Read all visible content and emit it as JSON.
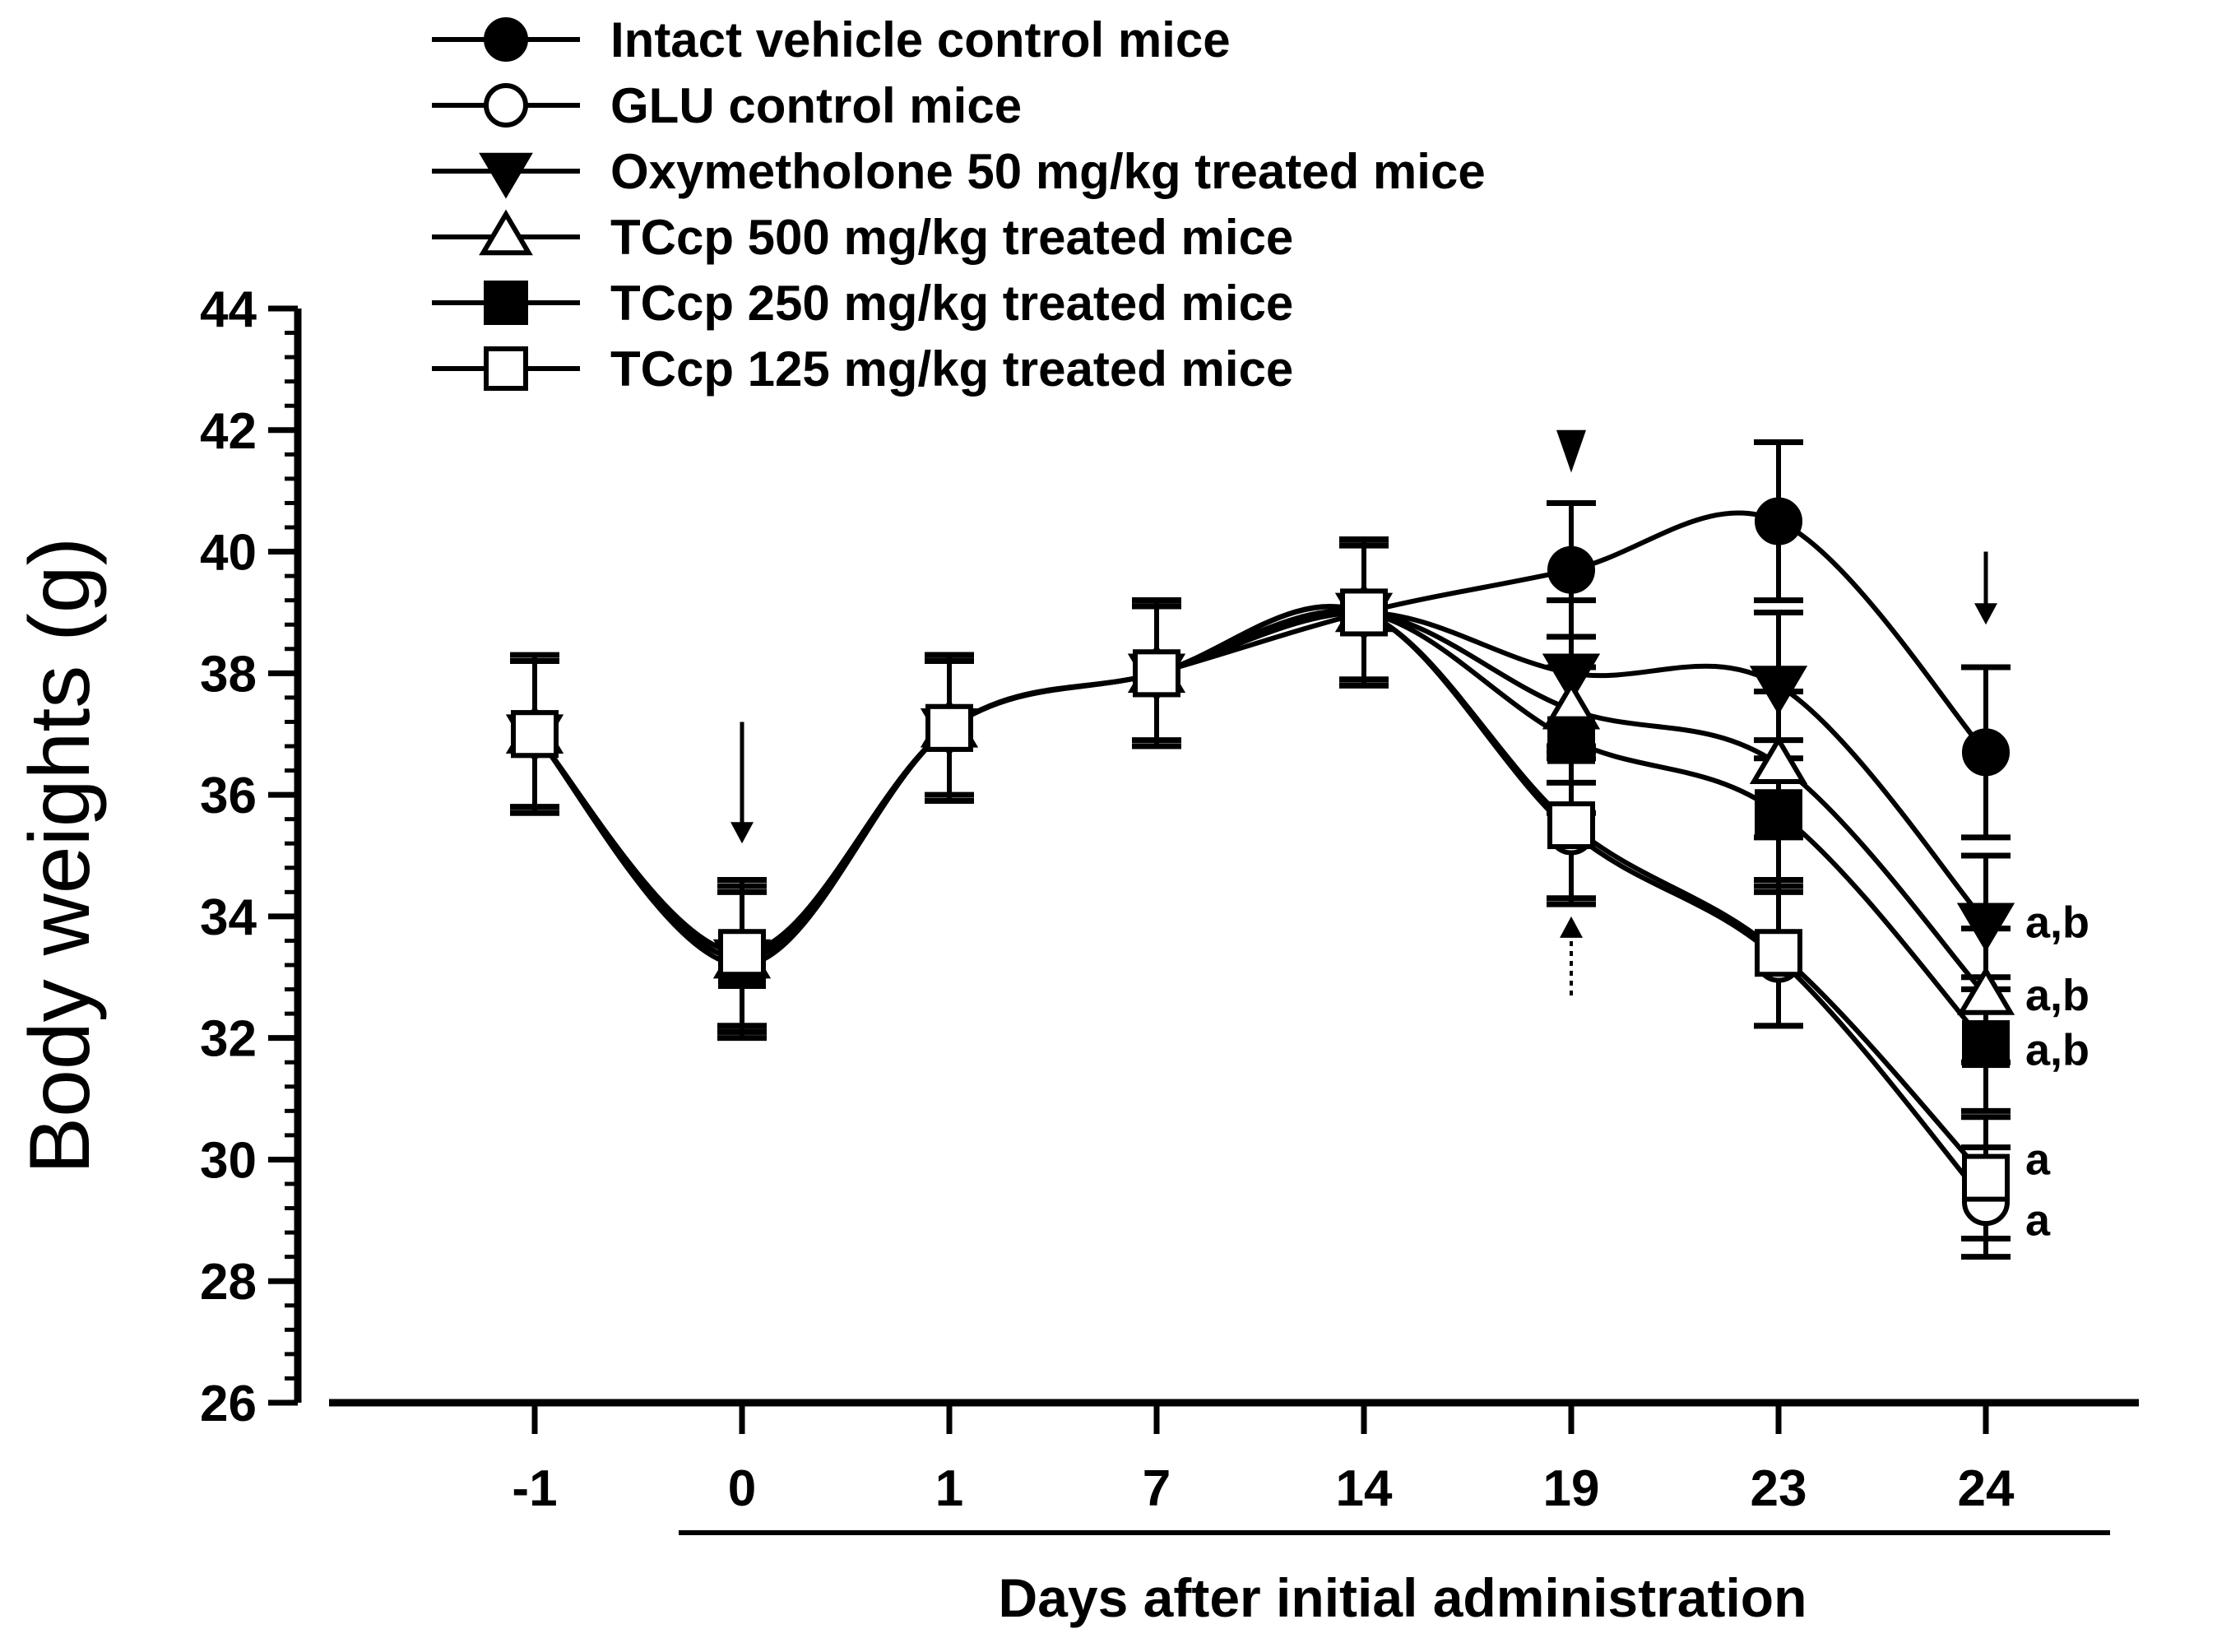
{
  "chart_data": {
    "type": "line",
    "title": "",
    "xlabel": "Days after initial administration",
    "ylabel": "Body weights (g)",
    "categories": [
      "-1",
      "0",
      "1",
      "7",
      "14",
      "19",
      "23",
      "24"
    ],
    "ylim": [
      26,
      44
    ],
    "yticks": [
      "26",
      "28",
      "30",
      "32",
      "34",
      "36",
      "38",
      "40",
      "42",
      "44"
    ],
    "grid": false,
    "legend_position": "top-left",
    "series": [
      {
        "name": "Intact vehicle control mice",
        "marker": "filled-circle",
        "values": [
          37.0,
          33.4,
          37.1,
          38.0,
          39.0,
          39.7,
          40.5,
          36.7
        ],
        "errors": [
          1.3,
          1.2,
          1.1,
          1.1,
          1.1,
          1.1,
          1.3,
          1.4
        ]
      },
      {
        "name": "GLU control mice",
        "marker": "open-circle",
        "values": [
          37.0,
          33.3,
          37.1,
          38.0,
          39.0,
          35.4,
          33.3,
          29.3
        ],
        "errors": [
          1.2,
          1.2,
          1.2,
          1.2,
          1.2,
          1.2,
          1.1,
          0.9
        ]
      },
      {
        "name": "Oxymetholone 50 mg/kg treated mice",
        "marker": "filled-triangle-down",
        "values": [
          37.0,
          33.3,
          37.1,
          38.0,
          39.0,
          38.0,
          37.8,
          33.9
        ],
        "errors": [
          1.2,
          1.2,
          1.2,
          1.2,
          1.2,
          1.2,
          1.2,
          1.1
        ]
      },
      {
        "name": "TCcp 500 mg/kg treated mice",
        "marker": "open-triangle-up",
        "values": [
          37.0,
          33.3,
          37.1,
          38.0,
          39.0,
          37.4,
          36.5,
          32.7
        ],
        "errors": [
          1.2,
          1.2,
          1.2,
          1.2,
          1.2,
          1.2,
          1.2,
          1.1
        ]
      },
      {
        "name": "TCcp 250 mg/kg treated mice",
        "marker": "filled-square",
        "values": [
          37.0,
          33.2,
          37.1,
          38.0,
          39.0,
          36.9,
          35.7,
          31.9
        ],
        "errors": [
          1.2,
          1.2,
          1.2,
          1.2,
          1.2,
          1.2,
          1.2,
          1.1
        ]
      },
      {
        "name": "TCcp 125 mg/kg treated mice",
        "marker": "open-square",
        "values": [
          37.0,
          33.4,
          37.1,
          38.0,
          39.0,
          35.5,
          33.4,
          29.7
        ],
        "errors": [
          1.2,
          1.2,
          1.2,
          1.2,
          1.2,
          1.2,
          1.2,
          1.0
        ]
      }
    ],
    "annotations": [
      {
        "text": "a,b",
        "x": "24",
        "y": 33.9
      },
      {
        "text": "a,b",
        "x": "24",
        "y": 32.7
      },
      {
        "text": "a,b",
        "x": "24",
        "y": 31.8
      },
      {
        "text": "a",
        "x": "24",
        "y": 30.0
      },
      {
        "text": "a",
        "x": "24",
        "y": 29.0
      }
    ],
    "arrows": [
      {
        "x": "0",
        "y_from": 37.2,
        "y_to": 35.2,
        "direction": "down",
        "style": "solid"
      },
      {
        "x": "19",
        "y_from": 42.0,
        "y_to": 41.3,
        "direction": "down",
        "style": "triangle"
      },
      {
        "x": "19",
        "y_from": 32.7,
        "y_to": 34.0,
        "direction": "up",
        "style": "dotted"
      },
      {
        "x": "24",
        "y_from": 40.0,
        "y_to": 38.8,
        "direction": "down",
        "style": "solid"
      }
    ]
  }
}
